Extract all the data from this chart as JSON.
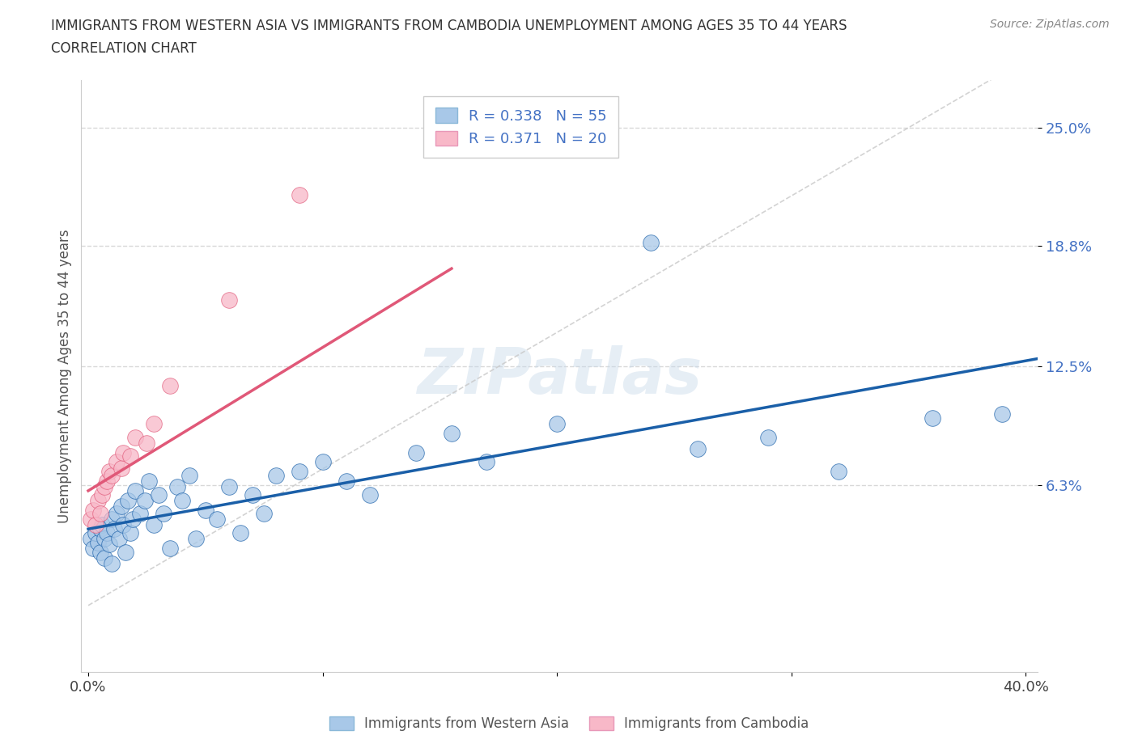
{
  "title_line1": "IMMIGRANTS FROM WESTERN ASIA VS IMMIGRANTS FROM CAMBODIA UNEMPLOYMENT AMONG AGES 35 TO 44 YEARS",
  "title_line2": "CORRELATION CHART",
  "source_text": "Source: ZipAtlas.com",
  "ylabel": "Unemployment Among Ages 35 to 44 years",
  "xlim": [
    -0.003,
    0.405
  ],
  "ylim": [
    -0.035,
    0.275
  ],
  "xtick_positions": [
    0.0,
    0.1,
    0.2,
    0.3,
    0.4
  ],
  "xticklabels": [
    "0.0%",
    "",
    "",
    "",
    "40.0%"
  ],
  "ytick_positions": [
    0.063,
    0.125,
    0.188,
    0.25
  ],
  "ytick_labels": [
    "6.3%",
    "12.5%",
    "18.8%",
    "25.0%"
  ],
  "grid_color": "#d8d8d8",
  "watermark": "ZIPatlas",
  "color_blue": "#a8c8e8",
  "color_pink": "#f8b8c8",
  "line_blue": "#1a5fa8",
  "line_pink": "#e05878",
  "line_dashed": "#c8c8c8",
  "western_asia_x": [
    0.001,
    0.002,
    0.003,
    0.004,
    0.005,
    0.005,
    0.006,
    0.007,
    0.007,
    0.008,
    0.009,
    0.01,
    0.01,
    0.011,
    0.012,
    0.013,
    0.014,
    0.015,
    0.016,
    0.017,
    0.018,
    0.019,
    0.02,
    0.022,
    0.024,
    0.026,
    0.028,
    0.03,
    0.032,
    0.035,
    0.038,
    0.04,
    0.043,
    0.046,
    0.05,
    0.055,
    0.06,
    0.065,
    0.07,
    0.075,
    0.08,
    0.09,
    0.1,
    0.11,
    0.12,
    0.14,
    0.155,
    0.17,
    0.2,
    0.24,
    0.26,
    0.29,
    0.32,
    0.36,
    0.39
  ],
  "western_asia_y": [
    0.035,
    0.03,
    0.038,
    0.033,
    0.04,
    0.028,
    0.042,
    0.035,
    0.025,
    0.038,
    0.032,
    0.045,
    0.022,
    0.04,
    0.048,
    0.035,
    0.052,
    0.042,
    0.028,
    0.055,
    0.038,
    0.045,
    0.06,
    0.048,
    0.055,
    0.065,
    0.042,
    0.058,
    0.048,
    0.03,
    0.062,
    0.055,
    0.068,
    0.035,
    0.05,
    0.045,
    0.062,
    0.038,
    0.058,
    0.048,
    0.068,
    0.07,
    0.075,
    0.065,
    0.058,
    0.08,
    0.09,
    0.075,
    0.095,
    0.19,
    0.082,
    0.088,
    0.07,
    0.098,
    0.1
  ],
  "cambodia_x": [
    0.001,
    0.002,
    0.003,
    0.004,
    0.005,
    0.006,
    0.007,
    0.008,
    0.009,
    0.01,
    0.012,
    0.014,
    0.015,
    0.018,
    0.02,
    0.025,
    0.028,
    0.035,
    0.06,
    0.09
  ],
  "cambodia_y": [
    0.045,
    0.05,
    0.042,
    0.055,
    0.048,
    0.058,
    0.062,
    0.065,
    0.07,
    0.068,
    0.075,
    0.072,
    0.08,
    0.078,
    0.088,
    0.085,
    0.095,
    0.115,
    0.16,
    0.215
  ]
}
